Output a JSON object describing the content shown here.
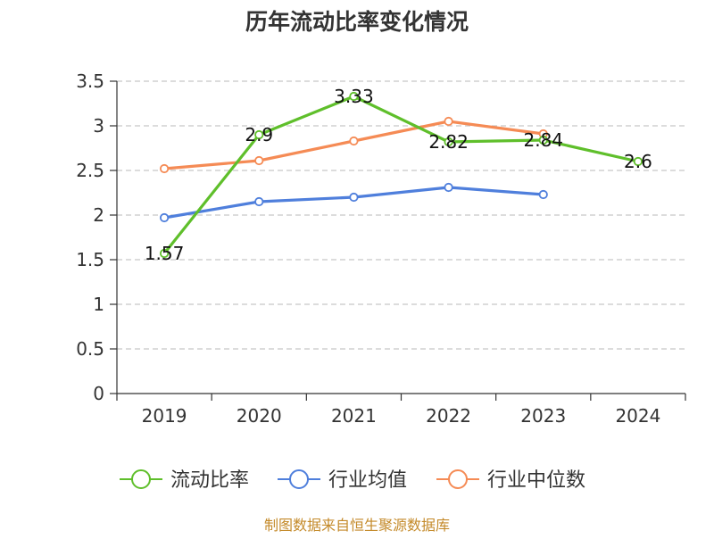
{
  "chart_data": {
    "type": "line",
    "title": "历年流动比率变化情况",
    "categories": [
      "2019",
      "2020",
      "2021",
      "2022",
      "2023",
      "2024"
    ],
    "ylim": [
      0,
      3.5
    ],
    "yticks": [
      "0",
      "0.5",
      "1",
      "1.5",
      "2",
      "2.5",
      "3",
      "3.5"
    ],
    "grid": true,
    "legend_position": "bottom",
    "series": [
      {
        "name": "流动比率",
        "color": "#5fbf2b",
        "values": [
          1.57,
          2.9,
          3.33,
          2.82,
          2.84,
          2.6
        ],
        "labels": [
          "1.57",
          "2.9",
          "3.33",
          "2.82",
          "2.84",
          "2.6"
        ]
      },
      {
        "name": "行业均值",
        "color": "#4f7fdc",
        "values": [
          1.97,
          2.15,
          2.2,
          2.31,
          2.23,
          null
        ]
      },
      {
        "name": "行业中位数",
        "color": "#f58b55",
        "values": [
          2.52,
          2.61,
          2.83,
          3.05,
          2.91,
          null
        ]
      }
    ],
    "source": "制图数据来自恒生聚源数据库"
  }
}
